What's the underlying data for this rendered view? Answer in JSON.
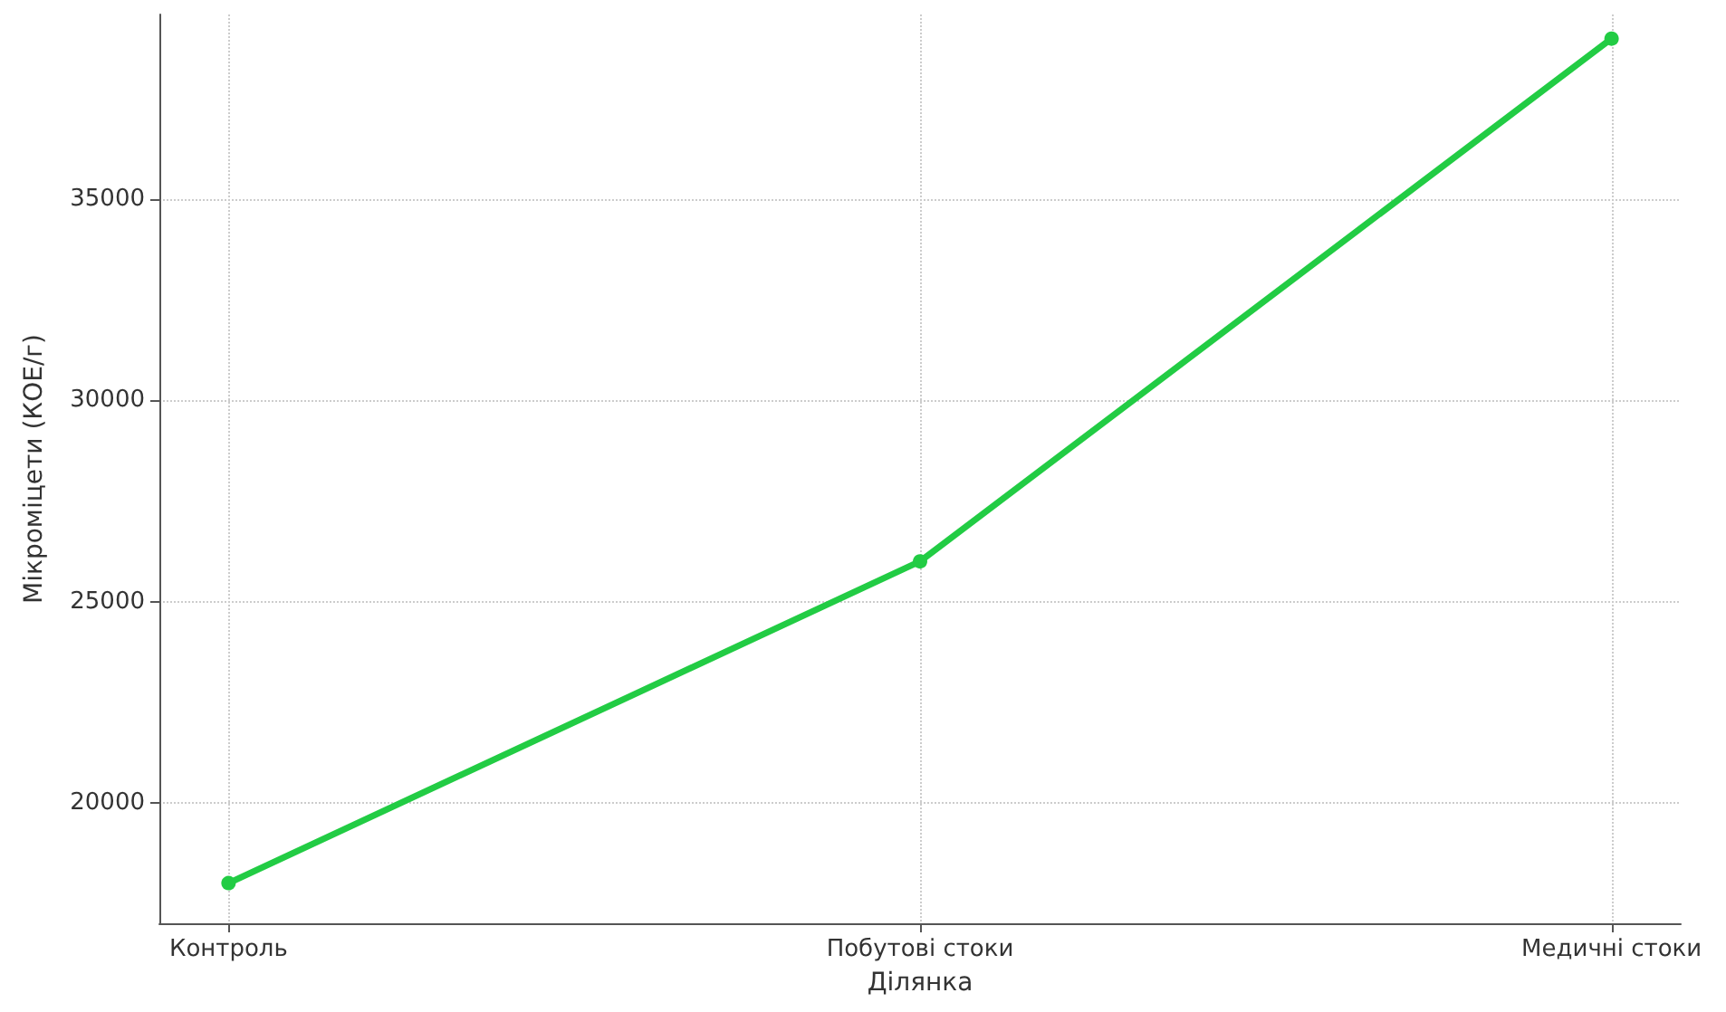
{
  "chart_data": {
    "type": "line",
    "xlabel": "Ділянка",
    "ylabel": "Мікроміцети (КОЕ/г)",
    "categories": [
      "Контроль",
      "Побутові стоки",
      "Медичні стоки"
    ],
    "series": [
      {
        "color": "#22cc44",
        "values": [
          18000,
          26000,
          39000
        ]
      }
    ],
    "ylim": [
      17000,
      39600
    ],
    "yticks": [
      20000,
      25000,
      30000,
      35000
    ],
    "grid": true,
    "marker": "circle",
    "line_style": "solid"
  }
}
